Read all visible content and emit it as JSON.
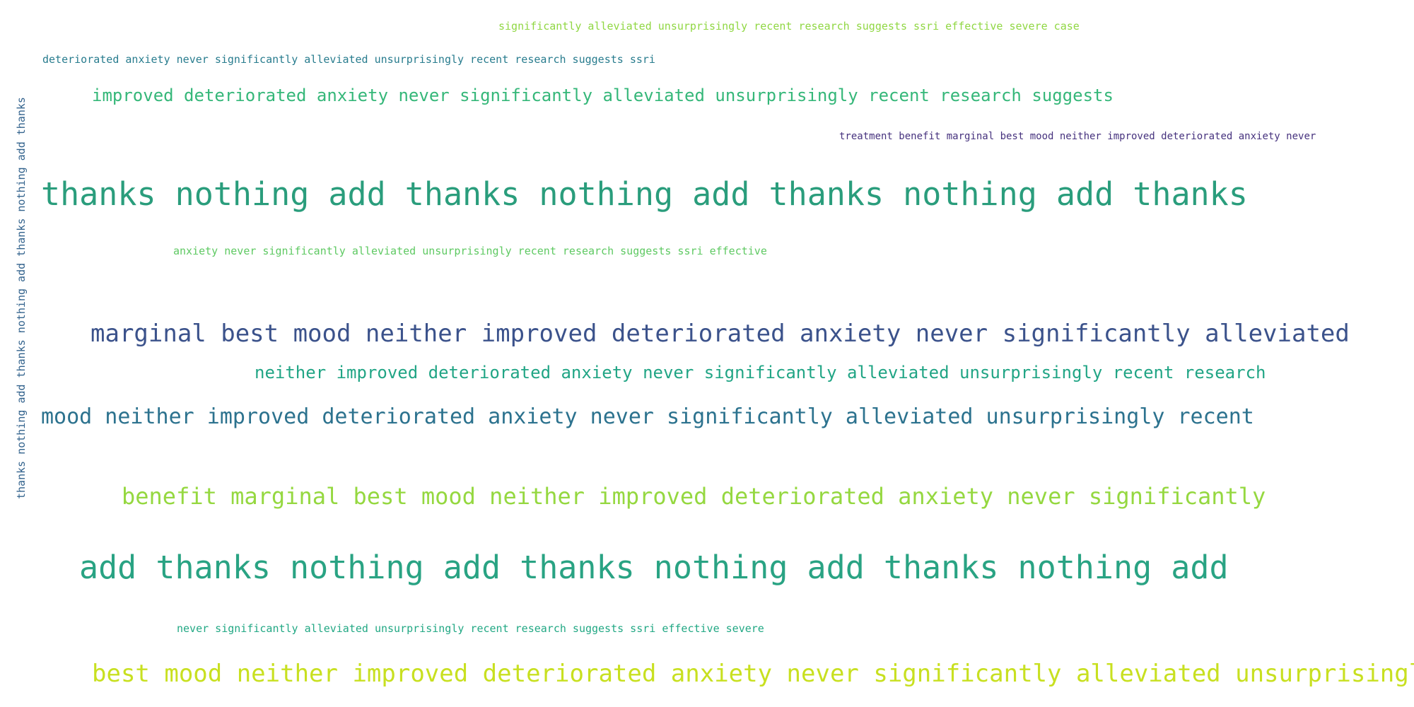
{
  "phrases": [
    {
      "text": "significantly alleviated unsurprisingly recent research suggests ssri effective severe case",
      "color": "#90d743"
    },
    {
      "text": "deteriorated anxiety never significantly alleviated unsurprisingly recent research suggests ssri",
      "color": "#287c8e"
    },
    {
      "text": "improved deteriorated anxiety never significantly alleviated unsurprisingly recent research suggests",
      "color": "#35b779"
    },
    {
      "text": "treatment benefit marginal best mood neither improved deteriorated anxiety never",
      "color": "#46327e"
    },
    {
      "text": "thanks nothing add thanks nothing add thanks nothing add thanks",
      "color": "#2a9d7c"
    },
    {
      "text": "anxiety never significantly alleviated unsurprisingly recent research suggests ssri effective",
      "color": "#5ec962"
    },
    {
      "text": "marginal best mood neither improved deteriorated anxiety never significantly alleviated",
      "color": "#3b528b"
    },
    {
      "text": "neither improved deteriorated anxiety never significantly alleviated unsurprisingly recent research",
      "color": "#21a585"
    },
    {
      "text": "mood neither improved deteriorated anxiety never significantly alleviated unsurprisingly recent",
      "color": "#2c728e"
    },
    {
      "text": "benefit marginal best mood neither improved deteriorated anxiety never significantly",
      "color": "#95d840"
    },
    {
      "text": "add thanks nothing add thanks nothing add thanks nothing add",
      "color": "#29a383"
    },
    {
      "text": "never significantly alleviated unsurprisingly recent research suggests ssri effective severe",
      "color": "#22a884"
    },
    {
      "text": "best mood neither improved deteriorated anxiety never significantly alleviated unsurprisingly",
      "color": "#c8e020"
    }
  ],
  "vertical_phrase": {
    "text": "thanks nothing add thanks nothing add thanks nothing add thanks",
    "color": "#33638d"
  }
}
